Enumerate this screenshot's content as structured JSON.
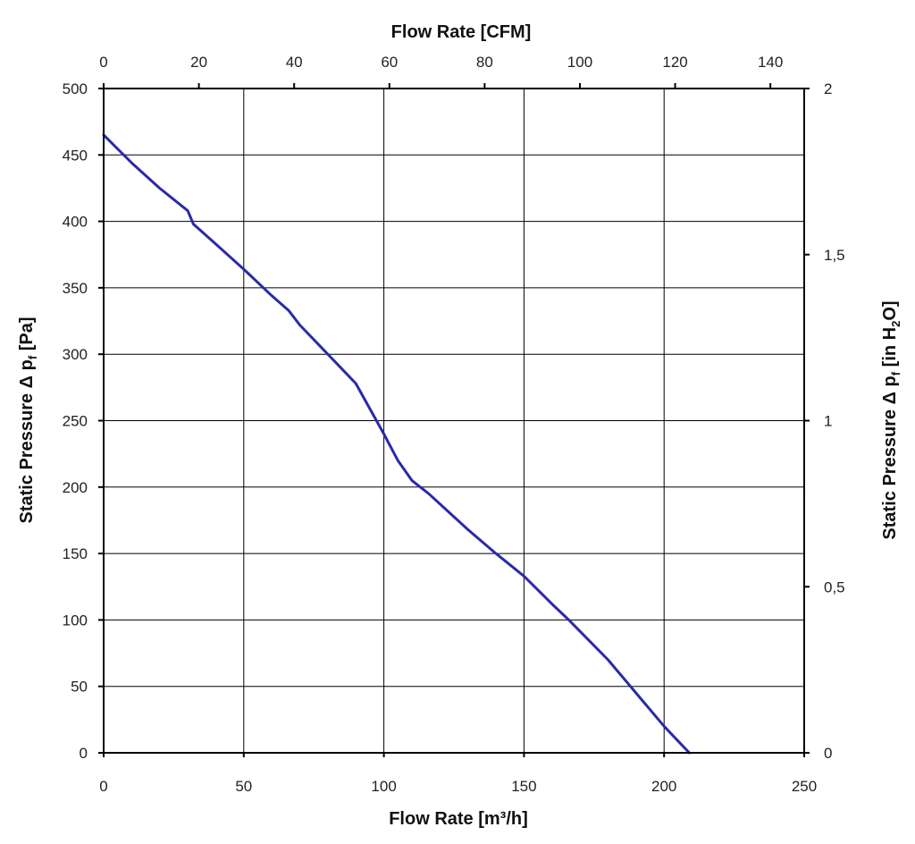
{
  "chart_data": {
    "type": "line",
    "xlabel": "Flow Rate [m³/h]",
    "xlabel_top": "Flow Rate [CFM]",
    "ylabel_left": {
      "main": "Static Pressure Δ p",
      "sub": "f",
      "unit": " [Pa]"
    },
    "ylabel_right": {
      "main": "Static Pressure Δ p",
      "sub": "f",
      "unit_pre": " [in H",
      "unit_sub": "2",
      "unit_post": "O]"
    },
    "xlim": [
      0,
      250
    ],
    "ylim": [
      0,
      500
    ],
    "x_top_lim": [
      0,
      147.1
    ],
    "y_right_lim": [
      0,
      2
    ],
    "x_ticks": [
      "0",
      "50",
      "100",
      "150",
      "200",
      "250"
    ],
    "x_tick_values": [
      0,
      50,
      100,
      150,
      200,
      250
    ],
    "y_ticks": [
      "0",
      "50",
      "100",
      "150",
      "200",
      "250",
      "300",
      "350",
      "400",
      "450",
      "500"
    ],
    "y_tick_values": [
      0,
      50,
      100,
      150,
      200,
      250,
      300,
      350,
      400,
      450,
      500
    ],
    "x_top_ticks": [
      "0",
      "20",
      "40",
      "60",
      "80",
      "100",
      "120",
      "140"
    ],
    "x_top_tick_values": [
      0,
      20,
      40,
      60,
      80,
      100,
      120,
      140
    ],
    "y_right_ticks": [
      "0",
      "0,5",
      "1",
      "1,5",
      "2"
    ],
    "y_right_tick_values": [
      0,
      0.5,
      1,
      1.5,
      2
    ],
    "grid": true,
    "color": "#2a2aa8",
    "series": [
      {
        "x": [
          0,
          10,
          20,
          30,
          32,
          40,
          50,
          60,
          66,
          70,
          80,
          90,
          100,
          105,
          110,
          116,
          130,
          140,
          150,
          160,
          166,
          180,
          190,
          200,
          209
        ],
        "y": [
          465,
          444,
          425,
          408,
          398,
          383,
          364,
          344,
          333,
          322,
          300,
          278,
          240,
          220,
          205,
          195,
          168,
          150,
          133,
          112,
          100,
          70,
          45,
          20,
          0
        ]
      }
    ]
  }
}
